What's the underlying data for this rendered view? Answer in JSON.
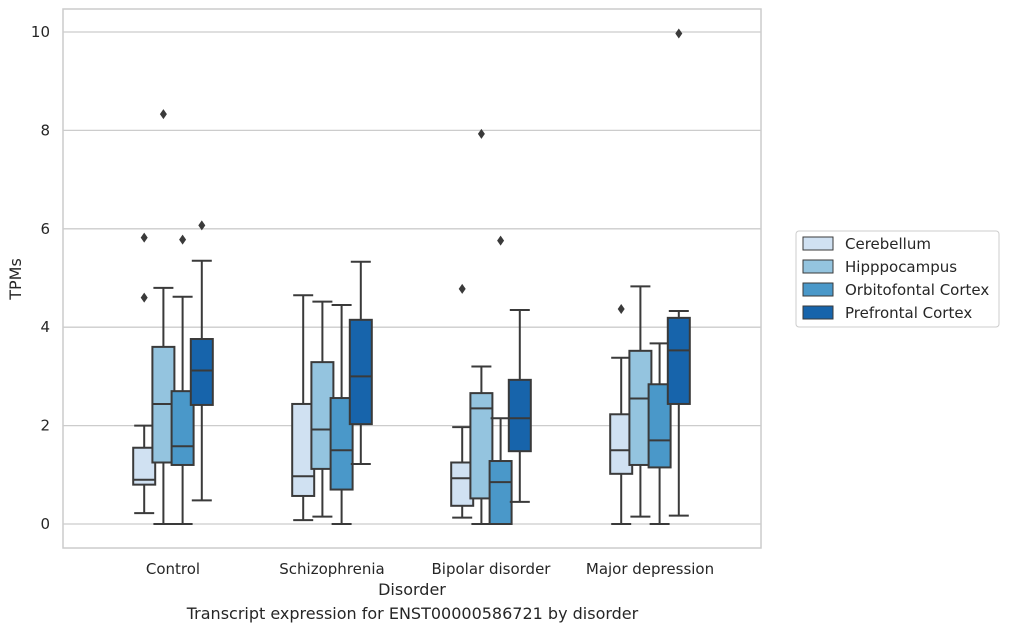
{
  "caption": "Transcript expression for ENST00000586721 by disorder",
  "chart_data": {
    "type": "box",
    "xlabel": "Disorder",
    "ylabel": "TPMs",
    "ylim": [
      -0.48,
      10.45
    ],
    "yticks": [
      0,
      2,
      4,
      6,
      8,
      10
    ],
    "grid": true,
    "legend_position": "right",
    "categories": [
      "Control",
      "Schizophrenia",
      "Bipolar disorder",
      "Major depression"
    ],
    "series": [
      {
        "name": "Cerebellum",
        "color": "#d0e1f2",
        "boxes": [
          {
            "whisker_low": 0.22,
            "q1": 0.8,
            "median": 0.9,
            "q3": 1.55,
            "whisker_high": 2.0,
            "outliers": [
              4.6,
              5.82
            ]
          },
          {
            "whisker_low": 0.08,
            "q1": 0.57,
            "median": 0.97,
            "q3": 2.44,
            "whisker_high": 4.65,
            "outliers": []
          },
          {
            "whisker_low": 0.13,
            "q1": 0.37,
            "median": 0.93,
            "q3": 1.25,
            "whisker_high": 1.97,
            "outliers": [
              4.78
            ]
          },
          {
            "whisker_low": 0.0,
            "q1": 1.02,
            "median": 1.5,
            "q3": 2.23,
            "whisker_high": 3.38,
            "outliers": [
              4.37
            ]
          }
        ]
      },
      {
        "name": "Hipppocampus",
        "color": "#94c4df",
        "boxes": [
          {
            "whisker_low": 0.0,
            "q1": 1.25,
            "median": 2.44,
            "q3": 3.6,
            "whisker_high": 4.8,
            "outliers": [
              8.33
            ]
          },
          {
            "whisker_low": 0.15,
            "q1": 1.12,
            "median": 1.92,
            "q3": 3.29,
            "whisker_high": 4.52,
            "outliers": []
          },
          {
            "whisker_low": 0.0,
            "q1": 0.52,
            "median": 2.35,
            "q3": 2.66,
            "whisker_high": 3.2,
            "outliers": [
              7.93
            ]
          },
          {
            "whisker_low": 0.15,
            "q1": 1.2,
            "median": 2.55,
            "q3": 3.52,
            "whisker_high": 4.83,
            "outliers": []
          }
        ]
      },
      {
        "name": "Orbitofontal Cortex",
        "color": "#4a98c9",
        "boxes": [
          {
            "whisker_low": 0.0,
            "q1": 1.2,
            "median": 1.58,
            "q3": 2.7,
            "whisker_high": 4.62,
            "outliers": [
              5.78
            ]
          },
          {
            "whisker_low": 0.0,
            "q1": 0.7,
            "median": 1.5,
            "q3": 2.56,
            "whisker_high": 4.45,
            "outliers": []
          },
          {
            "whisker_low": 0.0,
            "q1": 0.0,
            "median": 0.85,
            "q3": 1.28,
            "whisker_high": 2.15,
            "outliers": [
              5.76
            ]
          },
          {
            "whisker_low": 0.0,
            "q1": 1.15,
            "median": 1.7,
            "q3": 2.84,
            "whisker_high": 3.67,
            "outliers": []
          }
        ]
      },
      {
        "name": "Prefrontal Cortex",
        "color": "#1764ab",
        "boxes": [
          {
            "whisker_low": 0.48,
            "q1": 2.42,
            "median": 3.12,
            "q3": 3.76,
            "whisker_high": 5.35,
            "outliers": [
              6.07
            ]
          },
          {
            "whisker_low": 1.22,
            "q1": 2.03,
            "median": 3.0,
            "q3": 4.15,
            "whisker_high": 5.33,
            "outliers": []
          },
          {
            "whisker_low": 0.45,
            "q1": 1.48,
            "median": 2.15,
            "q3": 2.93,
            "whisker_high": 4.35,
            "outliers": []
          },
          {
            "whisker_low": 0.17,
            "q1": 2.44,
            "median": 3.53,
            "q3": 4.19,
            "whisker_high": 4.33,
            "outliers": [
              9.97
            ]
          }
        ]
      }
    ]
  }
}
